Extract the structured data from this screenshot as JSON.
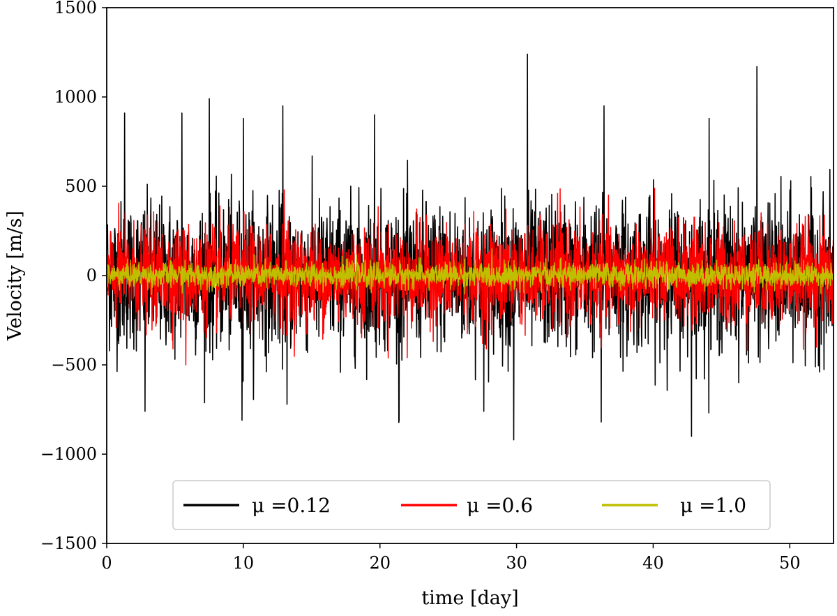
{
  "chart_data": {
    "type": "line",
    "title": "",
    "xlabel": "time [day]",
    "ylabel": "Velocity [m/s]",
    "xlim": [
      0,
      53.2
    ],
    "ylim": [
      -1500,
      1500
    ],
    "xticks": [
      0,
      10,
      20,
      30,
      40,
      50
    ],
    "yticks": [
      -1500,
      -1000,
      -500,
      0,
      500,
      1000,
      1500
    ],
    "xtick_labels": [
      "0",
      "10",
      "20",
      "30",
      "40",
      "50"
    ],
    "ytick_labels": [
      "−1500",
      "−1000",
      "−500",
      "0",
      "500",
      "1000",
      "1500"
    ],
    "grid": false,
    "legend_position": "lower-center",
    "series": [
      {
        "name": "μ =0.12",
        "color": "#000000",
        "typical_envelope": [
          -450,
          450
        ],
        "peaks": [
          {
            "x": 30.8,
            "y": 1240
          },
          {
            "x": 47.6,
            "y": 1170
          },
          {
            "x": 12.9,
            "y": 950
          },
          {
            "x": 36.4,
            "y": 950
          },
          {
            "x": 1.3,
            "y": 910
          },
          {
            "x": 5.5,
            "y": 910
          },
          {
            "x": 7.5,
            "y": 990
          },
          {
            "x": 19.6,
            "y": 900
          },
          {
            "x": 10.0,
            "y": 880
          },
          {
            "x": 44.1,
            "y": 880
          }
        ],
        "troughs": [
          {
            "x": 29.8,
            "y": -920
          },
          {
            "x": 42.8,
            "y": -900
          },
          {
            "x": 9.9,
            "y": -810
          },
          {
            "x": 21.4,
            "y": -810
          },
          {
            "x": 36.2,
            "y": -820
          },
          {
            "x": 2.8,
            "y": -760
          },
          {
            "x": 13.2,
            "y": -720
          },
          {
            "x": 27.6,
            "y": -760
          }
        ]
      },
      {
        "name": "μ =0.6",
        "color": "#ff0000",
        "typical_envelope": [
          -300,
          300
        ],
        "peaks": [
          {
            "x": 13.0,
            "y": 480
          },
          {
            "x": 33.0,
            "y": 460
          }
        ],
        "troughs": [
          {
            "x": 5.8,
            "y": -500
          },
          {
            "x": 22.0,
            "y": -460
          }
        ]
      },
      {
        "name": "μ =1.0",
        "color": "#bfbf00",
        "typical_envelope": [
          -75,
          80
        ],
        "peaks": [],
        "troughs": []
      }
    ]
  }
}
